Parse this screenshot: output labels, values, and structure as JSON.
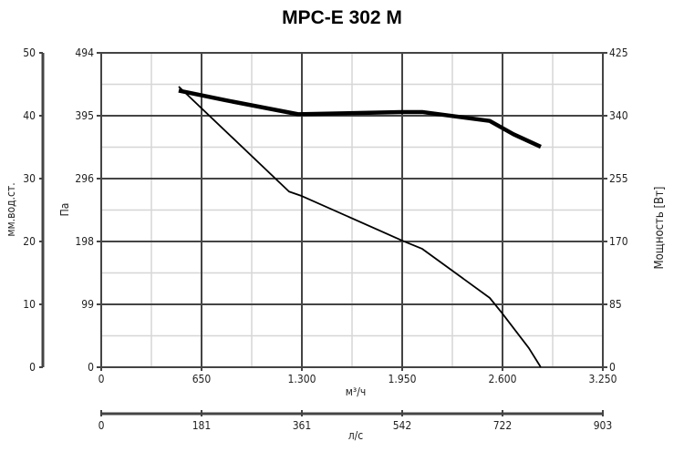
{
  "chart_data": {
    "type": "line",
    "title": "MPC-E 302 M",
    "xlabel": "м³/ч",
    "xlabel2": "л/с",
    "ylabel_left_outer": "мм.вод.ст.",
    "ylabel_left_inner": "Па",
    "ylabel_right": "Мощность [Вт]",
    "xlim": [
      0,
      3250
    ],
    "xticks": [
      "0",
      "650",
      "1.300",
      "1.950",
      "2.600",
      "3.250"
    ],
    "x2ticks": [
      "0",
      "181",
      "361",
      "542",
      "722",
      "903"
    ],
    "ylim_pa": [
      0,
      494
    ],
    "yticks_pa": [
      "0",
      "99",
      "198",
      "296",
      "395",
      "494"
    ],
    "yticks_mm": [
      "0",
      "10",
      "20",
      "30",
      "40",
      "50"
    ],
    "ylim_power": [
      0,
      425
    ],
    "yticks_power": [
      "0",
      "85",
      "170",
      "255",
      "340",
      "425"
    ],
    "grid": true,
    "series": [
      {
        "axis": "pressure",
        "x": [
          502,
          1217,
          1300,
          1950,
          2080,
          2517,
          2594,
          2771,
          2848
        ],
        "y": [
          441,
          276,
          269,
          199,
          186,
          109,
          86,
          30,
          0
        ]
      },
      {
        "axis": "power",
        "x": [
          502,
          804,
          1276,
          1944,
          2080,
          2517,
          2671,
          2848
        ],
        "y": [
          374,
          361,
          342,
          345,
          345,
          333,
          315,
          298
        ]
      }
    ]
  }
}
